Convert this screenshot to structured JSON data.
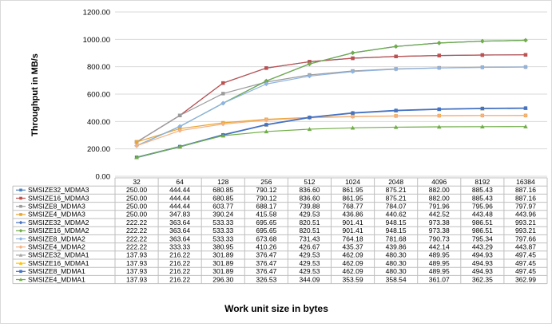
{
  "chart_data": {
    "type": "line",
    "title": "",
    "xlabel": "Work unit size in bytes",
    "ylabel": "Throughput in MB/s",
    "ylim": [
      0,
      1200
    ],
    "ytick_labels": [
      "0.00",
      "200.00",
      "400.00",
      "600.00",
      "800.00",
      "1000.00",
      "1200.00"
    ],
    "categories": [
      "32",
      "64",
      "128",
      "256",
      "512",
      "1024",
      "2048",
      "4096",
      "8192",
      "16384"
    ],
    "grid": true,
    "legend": "table-below",
    "series": [
      {
        "name": "SMSIZE32_MDMA3",
        "color": "#4f81bd",
        "marker": "square",
        "values": [
          "250.00",
          "444.44",
          "680.85",
          "790.12",
          "836.60",
          "861.95",
          "875.21",
          "882.00",
          "885.43",
          "887.16"
        ]
      },
      {
        "name": "SMSIZE16_MDMA3",
        "color": "#c0504d",
        "marker": "square",
        "values": [
          "250.00",
          "444.44",
          "680.85",
          "790.12",
          "836.60",
          "861.95",
          "875.21",
          "882.00",
          "885.43",
          "887.16"
        ]
      },
      {
        "name": "SMSIZE8_MDMA3",
        "color": "#9b9b9b",
        "marker": "square",
        "values": [
          "250.00",
          "444.44",
          "603.77",
          "688.17",
          "739.88",
          "768.77",
          "784.07",
          "791.96",
          "795.96",
          "797.97"
        ]
      },
      {
        "name": "SMSIZE4_MDMA3",
        "color": "#e8a530",
        "marker": "square",
        "values": [
          "250.00",
          "347.83",
          "390.24",
          "415.58",
          "429.53",
          "436.86",
          "440.62",
          "442.52",
          "443.48",
          "443.96"
        ]
      },
      {
        "name": "SMSIZE32_MDMA2",
        "color": "#4472c4",
        "marker": "diamond",
        "values": [
          "222.22",
          "363.64",
          "533.33",
          "695.65",
          "820.51",
          "901.41",
          "948.15",
          "973.38",
          "986.51",
          "993.21"
        ]
      },
      {
        "name": "SMSIZE16_MDMA2",
        "color": "#70ad47",
        "marker": "diamond",
        "values": [
          "222.22",
          "363.64",
          "533.33",
          "695.65",
          "820.51",
          "901.41",
          "948.15",
          "973.38",
          "986.51",
          "993.21"
        ]
      },
      {
        "name": "SMSIZE8_MDMA2",
        "color": "#8eb4e3",
        "marker": "diamond",
        "values": [
          "222.22",
          "363.64",
          "533.33",
          "673.68",
          "731.43",
          "764.18",
          "781.68",
          "790.73",
          "795.34",
          "797.66"
        ]
      },
      {
        "name": "SMSIZE4_MDMA2",
        "color": "#f4b183",
        "marker": "diamond",
        "values": [
          "222.22",
          "333.33",
          "380.95",
          "410.26",
          "426.67",
          "435.37",
          "439.86",
          "442.14",
          "443.29",
          "443.87"
        ]
      },
      {
        "name": "SMSIZE32_MDMA1",
        "color": "#a5a5a5",
        "marker": "triangle",
        "values": [
          "137.93",
          "216.22",
          "301.89",
          "376.47",
          "429.53",
          "462.09",
          "480.30",
          "489.95",
          "494.93",
          "497.45"
        ]
      },
      {
        "name": "SMSIZE16_MDMA1",
        "color": "#ffc000",
        "marker": "triangle",
        "values": [
          "137.93",
          "216.22",
          "301.89",
          "376.47",
          "429.53",
          "462.09",
          "480.30",
          "489.95",
          "494.93",
          "497.45"
        ]
      },
      {
        "name": "SMSIZE8_MDMA1",
        "color": "#4472c4",
        "marker": "square",
        "values": [
          "137.93",
          "216.22",
          "301.89",
          "376.47",
          "429.53",
          "462.09",
          "480.30",
          "489.95",
          "494.93",
          "497.45"
        ]
      },
      {
        "name": "SMSIZE4_MDMA1",
        "color": "#70ad47",
        "marker": "triangle",
        "values": [
          "137.93",
          "216.22",
          "296.30",
          "326.53",
          "344.09",
          "353.59",
          "358.54",
          "361.07",
          "362.35",
          "362.99"
        ]
      }
    ]
  }
}
